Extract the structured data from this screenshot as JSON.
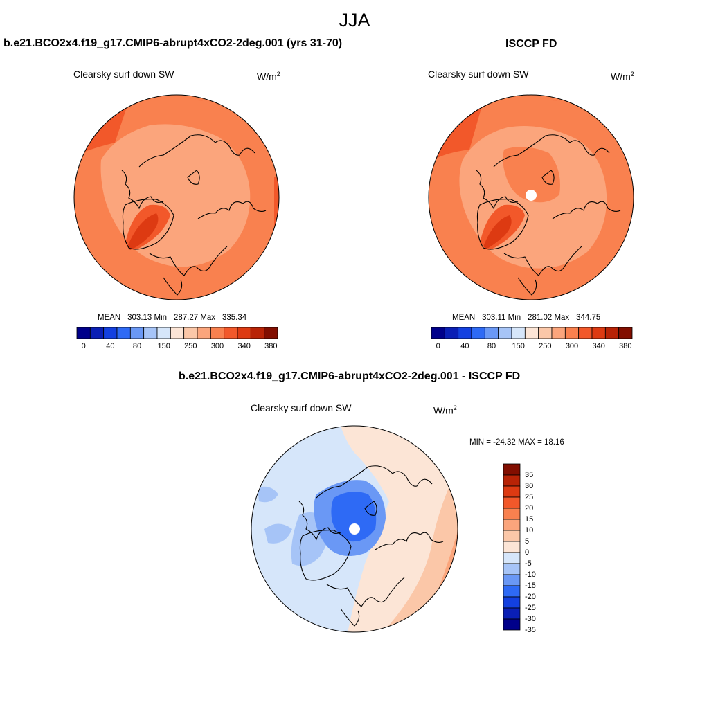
{
  "figure": {
    "season": "JJA"
  },
  "panels": [
    {
      "title": "b.e21.BCO2x4.f19_g17.CMIP6-abrupt4xCO2-2deg.001 (yrs 31-70)",
      "variable": "Clearsky surf down SW",
      "units_base": "W/m",
      "units_exp": "2",
      "stats": "MEAN= 303.13  Min= 287.27  Max= 335.34",
      "has_pole_hole": false
    },
    {
      "title": "ISCCP FD",
      "variable": "Clearsky surf down SW",
      "units_base": "W/m",
      "units_exp": "2",
      "stats": "MEAN= 303.11  Min= 281.02  Max= 344.75",
      "has_pole_hole": true
    },
    {
      "title": "b.e21.BCO2x4.f19_g17.CMIP6-abrupt4xCO2-2deg.001 - ISCCP FD",
      "variable": "Clearsky surf down SW",
      "units_base": "W/m",
      "units_exp": "2",
      "stats": "MIN = -24.32 MAX =  18.16",
      "has_pole_hole": true
    }
  ],
  "colorbar_h": {
    "colors": [
      "#00008a",
      "#0a1fb5",
      "#1340e0",
      "#2e6af5",
      "#6a98f5",
      "#a6c4f7",
      "#d6e6fa",
      "#fce5d6",
      "#fbc7a8",
      "#fba57c",
      "#f9814f",
      "#f2582a",
      "#dd3a12",
      "#b82306",
      "#820e00"
    ],
    "tick_labels": [
      "0",
      "40",
      "80",
      "150",
      "250",
      "300",
      "340",
      "380"
    ]
  },
  "colorbar_v": {
    "colors": [
      "#820e00",
      "#b82306",
      "#dd3a12",
      "#f2582a",
      "#f9814f",
      "#fba57c",
      "#fbc7a8",
      "#fce5d6",
      "#d6e6fa",
      "#a6c4f7",
      "#6a98f5",
      "#2e6af5",
      "#1340e0",
      "#0a1fb5",
      "#00008a"
    ],
    "tick_labels": [
      "35",
      "30",
      "25",
      "20",
      "15",
      "10",
      "5",
      "0",
      "-5",
      "-10",
      "-15",
      "-20",
      "-25",
      "-30",
      "-35"
    ]
  }
}
